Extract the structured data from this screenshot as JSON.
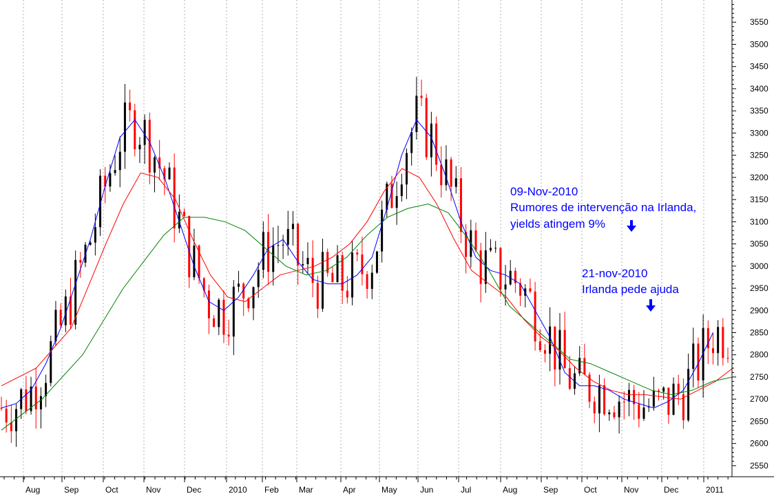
{
  "chart_data": {
    "type": "candlestick",
    "title": "",
    "xlabel": "",
    "ylabel": "",
    "ylim": [
      2525,
      3600
    ],
    "y_ticks": [
      2550,
      2600,
      2650,
      2700,
      2750,
      2800,
      2850,
      2900,
      2950,
      3000,
      3050,
      3100,
      3150,
      3200,
      3250,
      3300,
      3350,
      3400,
      3450,
      3500,
      3550
    ],
    "x_tick_labels": [
      "Aug",
      "Sep",
      "Oct",
      "Nov",
      "Dec",
      "2010",
      "Feb",
      "Mar",
      "Apr",
      "May",
      "Jun",
      "Jul",
      "Aug",
      "Sep",
      "Oct",
      "Nov",
      "Dec",
      "2011"
    ],
    "grid": "vertical-dotted",
    "colors": {
      "up": "#000000",
      "down": "#ff0000",
      "ma_short": "#0000ff",
      "ma_medium": "#ff0000",
      "ma_long": "#008000",
      "annotation": "#0000ff",
      "grid": "#b0b0b0"
    },
    "series": [
      {
        "name": "",
        "color": "#0000ff",
        "points": [
          [
            0,
            2680
          ],
          [
            3,
            2690
          ],
          [
            6,
            2720
          ],
          [
            9,
            2780
          ],
          [
            12,
            2860
          ],
          [
            15,
            2960
          ],
          [
            18,
            3060
          ],
          [
            21,
            3180
          ],
          [
            24,
            3290
          ],
          [
            27,
            3330
          ],
          [
            30,
            3280
          ],
          [
            33,
            3200
          ],
          [
            36,
            3100
          ],
          [
            39,
            3000
          ],
          [
            42,
            2920
          ],
          [
            45,
            2900
          ],
          [
            48,
            2930
          ],
          [
            51,
            2980
          ],
          [
            54,
            3040
          ],
          [
            57,
            3060
          ],
          [
            60,
            3010
          ],
          [
            63,
            2970
          ],
          [
            66,
            2960
          ],
          [
            69,
            2960
          ],
          [
            72,
            2980
          ],
          [
            75,
            3020
          ],
          [
            78,
            3130
          ],
          [
            81,
            3250
          ],
          [
            84,
            3330
          ],
          [
            87,
            3290
          ],
          [
            90,
            3200
          ],
          [
            93,
            3100
          ],
          [
            96,
            3020
          ],
          [
            99,
            2990
          ],
          [
            102,
            2980
          ],
          [
            105,
            2960
          ],
          [
            108,
            2900
          ],
          [
            111,
            2840
          ],
          [
            114,
            2760
          ],
          [
            117,
            2730
          ],
          [
            120,
            2730
          ],
          [
            123,
            2720
          ],
          [
            126,
            2700
          ],
          [
            129,
            2690
          ],
          [
            132,
            2680
          ],
          [
            135,
            2695
          ],
          [
            138,
            2720
          ],
          [
            141,
            2780
          ],
          [
            144,
            2850
          ]
        ]
      },
      {
        "name": "",
        "color": "#ff0000",
        "points": [
          [
            0,
            2730
          ],
          [
            6,
            2770
          ],
          [
            12,
            2860
          ],
          [
            18,
            3050
          ],
          [
            21,
            3140
          ],
          [
            24,
            3210
          ],
          [
            27,
            3200
          ],
          [
            30,
            3150
          ],
          [
            33,
            3060
          ],
          [
            36,
            2980
          ],
          [
            39,
            2930
          ],
          [
            42,
            2920
          ],
          [
            45,
            2950
          ],
          [
            48,
            2980
          ],
          [
            51,
            2990
          ],
          [
            54,
            3000
          ],
          [
            57,
            3020
          ],
          [
            60,
            3050
          ],
          [
            63,
            3100
          ],
          [
            66,
            3170
          ],
          [
            69,
            3220
          ],
          [
            72,
            3200
          ],
          [
            75,
            3140
          ],
          [
            78,
            3060
          ],
          [
            81,
            2990
          ],
          [
            84,
            2960
          ],
          [
            87,
            2930
          ],
          [
            90,
            2880
          ],
          [
            93,
            2840
          ],
          [
            96,
            2810
          ],
          [
            99,
            2770
          ],
          [
            102,
            2740
          ],
          [
            105,
            2720
          ],
          [
            108,
            2710
          ],
          [
            111,
            2710
          ],
          [
            114,
            2705
          ],
          [
            117,
            2700
          ],
          [
            120,
            2720
          ],
          [
            123,
            2740
          ],
          [
            126,
            2770
          ]
        ]
      },
      {
        "name": "",
        "color": "#008000",
        "points": [
          [
            0,
            2630
          ],
          [
            6,
            2700
          ],
          [
            12,
            2800
          ],
          [
            18,
            2950
          ],
          [
            24,
            3070
          ],
          [
            27,
            3110
          ],
          [
            30,
            3110
          ],
          [
            33,
            3100
          ],
          [
            36,
            3080
          ],
          [
            39,
            3040
          ],
          [
            42,
            3000
          ],
          [
            45,
            2980
          ],
          [
            48,
            2990
          ],
          [
            51,
            3020
          ],
          [
            54,
            3070
          ],
          [
            57,
            3110
          ],
          [
            60,
            3130
          ],
          [
            63,
            3140
          ],
          [
            66,
            3120
          ],
          [
            69,
            3060
          ],
          [
            72,
            2990
          ],
          [
            75,
            2910
          ],
          [
            78,
            2870
          ],
          [
            81,
            2830
          ],
          [
            84,
            2790
          ],
          [
            87,
            2780
          ],
          [
            90,
            2760
          ],
          [
            93,
            2740
          ],
          [
            96,
            2720
          ],
          [
            99,
            2710
          ],
          [
            102,
            2720
          ],
          [
            105,
            2740
          ],
          [
            108,
            2750
          ]
        ]
      }
    ],
    "annotations": [
      {
        "lines": [
          "09-Nov-2010",
          "Rumores de intervenção na Irlanda,",
          "yields atingem 9%"
        ]
      },
      {
        "lines": [
          "21-nov-2010",
          "Irlanda pede ajuda"
        ]
      }
    ]
  }
}
